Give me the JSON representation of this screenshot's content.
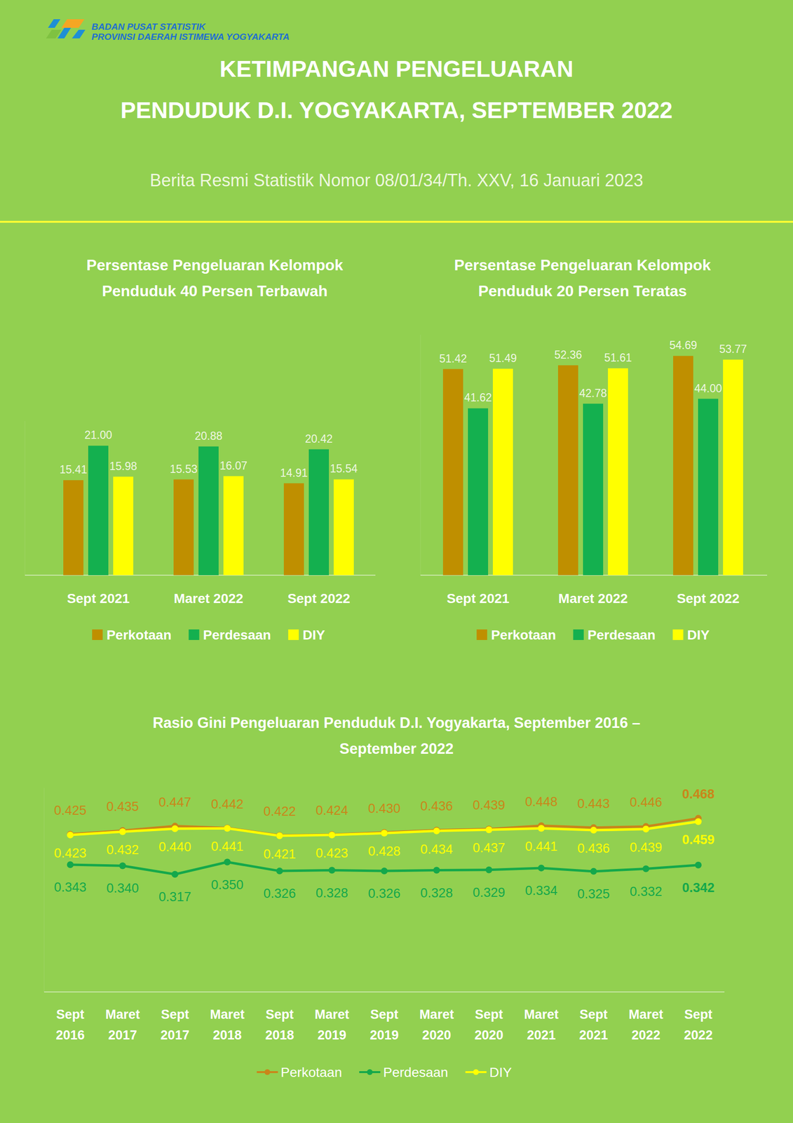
{
  "header": {
    "org": [
      "BADAN PUSAT STATISTIK",
      "PROVINSI DAERAH ISTIMEWA YOGYAKARTA"
    ],
    "title": [
      "KETIMPANGAN PENGELUARAN",
      "PENDUDUK D.I. YOGYAKARTA, SEPTEMBER 2022"
    ],
    "subtitle": "Berita Resmi Statistik Nomor 08/01/34/Th. XXV, 16 Januari 2023"
  },
  "chart_data": [
    {
      "type": "bar",
      "title": [
        "Persentase Pengeluaran Kelompok",
        "Penduduk 40 Persen Terbawah"
      ],
      "categories": [
        "Sept 2021",
        "Maret 2022",
        "Sept 2022"
      ],
      "series": [
        {
          "name": "Perkotaan",
          "color": "#bf8f00",
          "values": [
            15.41,
            15.53,
            14.91
          ],
          "value_labels": [
            "15.41",
            "15.53",
            "14.91"
          ]
        },
        {
          "name": "Perdesaan",
          "color": "#14b04f",
          "values": [
            21.0,
            20.88,
            20.42
          ],
          "value_labels": [
            "21.00",
            "20.88",
            "20.42"
          ]
        },
        {
          "name": "DIY",
          "color": "#ffff00",
          "values": [
            15.98,
            16.07,
            15.54
          ],
          "value_labels": [
            "15.98",
            "16.07",
            "15.54"
          ]
        }
      ],
      "ylim": [
        0,
        25
      ],
      "grid": false,
      "tick_labels": "x",
      "data_labels": true,
      "legend": "bottom"
    },
    {
      "type": "bar",
      "title": [
        "Persentase Pengeluaran Kelompok",
        "Penduduk 20 Persen Teratas"
      ],
      "categories": [
        "Sept 2021",
        "Maret 2022",
        "Sept 2022"
      ],
      "series": [
        {
          "name": "Perkotaan",
          "color": "#bf8f00",
          "values": [
            51.42,
            52.36,
            54.69
          ],
          "value_labels": [
            "51.42",
            "52.36",
            "54.69"
          ]
        },
        {
          "name": "Perdesaan",
          "color": "#14b04f",
          "values": [
            41.62,
            42.78,
            44.0
          ],
          "value_labels": [
            "41.62",
            "42.78",
            "44.00"
          ]
        },
        {
          "name": "DIY",
          "color": "#ffff00",
          "values": [
            51.49,
            51.61,
            53.77
          ],
          "value_labels": [
            "51.49",
            "51.61",
            "53.77"
          ]
        }
      ],
      "ylim": [
        0,
        60
      ],
      "grid": false,
      "tick_labels": "x",
      "data_labels": true,
      "legend": "bottom"
    },
    {
      "type": "line",
      "title": [
        "Rasio Gini Pengeluaran Penduduk D.I. Yogyakarta, September 2016 –",
        "September 2022"
      ],
      "categories": [
        "Sept 2016",
        "Maret 2017",
        "Sept 2017",
        "Maret 2018",
        "Sept 2018",
        "Maret 2019",
        "Sept 2019",
        "Maret 2020",
        "Sept 2020",
        "Maret 2021",
        "Sept 2021",
        "Maret 2022",
        "Sept 2022"
      ],
      "series": [
        {
          "name": "Perkotaan",
          "color": "#c9861a",
          "marker": "circle",
          "values": [
            0.425,
            0.435,
            0.447,
            0.442,
            0.422,
            0.424,
            0.43,
            0.436,
            0.439,
            0.448,
            0.443,
            0.446,
            0.468
          ],
          "value_labels": [
            "0.425",
            "0.435",
            "0.447",
            "0.442",
            "0.422",
            "0.424",
            "0.430",
            "0.436",
            "0.439",
            "0.448",
            "0.443",
            "0.446",
            "0.468"
          ]
        },
        {
          "name": "Perdesaan",
          "color": "#14a84b",
          "marker": "circle",
          "values": [
            0.343,
            0.34,
            0.317,
            0.35,
            0.326,
            0.328,
            0.326,
            0.328,
            0.329,
            0.334,
            0.325,
            0.332,
            0.342
          ],
          "value_labels": [
            "0.343",
            "0.340",
            "0.317",
            "0.350",
            "0.326",
            "0.328",
            "0.326",
            "0.328",
            "0.329",
            "0.334",
            "0.325",
            "0.332",
            "0.342"
          ]
        },
        {
          "name": "DIY",
          "color": "#ffff00",
          "marker": "circle",
          "values": [
            0.423,
            0.432,
            0.44,
            0.441,
            0.421,
            0.423,
            0.428,
            0.434,
            0.437,
            0.441,
            0.436,
            0.439,
            0.459
          ],
          "value_labels": [
            "0.423",
            "0.432",
            "0.440",
            "0.441",
            "0.421",
            "0.423",
            "0.428",
            "0.434",
            "0.437",
            "0.441",
            "0.436",
            "0.439",
            "0.459"
          ]
        }
      ],
      "ylim": [
        0,
        0.55
      ],
      "grid": false,
      "tick_labels": "x",
      "data_labels": true,
      "legend": "bottom"
    }
  ]
}
